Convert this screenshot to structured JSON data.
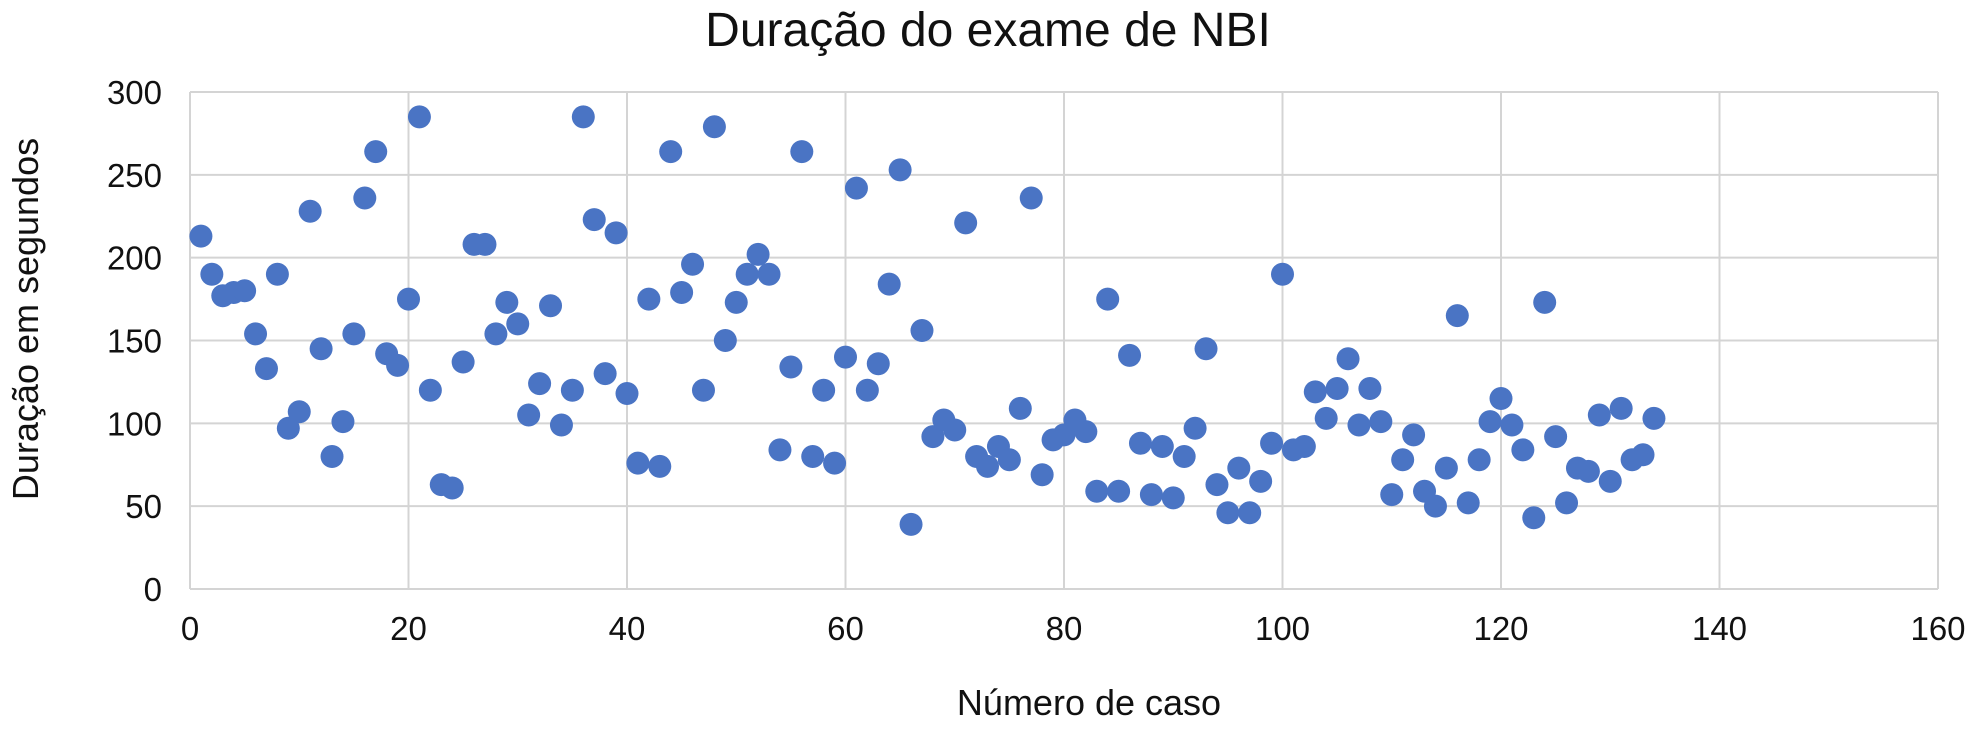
{
  "chart_data": {
    "type": "scatter",
    "title": "Duração do exame de NBI",
    "xlabel": "Número de caso",
    "ylabel": "Duração em segundos",
    "xlim": [
      0,
      160
    ],
    "ylim": [
      0,
      300
    ],
    "xticks": [
      0,
      20,
      40,
      60,
      80,
      100,
      120,
      140,
      160
    ],
    "yticks": [
      0,
      50,
      100,
      150,
      200,
      250,
      300
    ],
    "grid": true,
    "legend": "none",
    "marker_color": "#4a74c4",
    "points": [
      [
        1,
        213
      ],
      [
        2,
        190
      ],
      [
        3,
        177
      ],
      [
        4,
        179
      ],
      [
        5,
        180
      ],
      [
        6,
        154
      ],
      [
        7,
        133
      ],
      [
        8,
        190
      ],
      [
        9,
        97
      ],
      [
        10,
        107
      ],
      [
        11,
        228
      ],
      [
        12,
        145
      ],
      [
        13,
        80
      ],
      [
        14,
        101
      ],
      [
        15,
        154
      ],
      [
        16,
        236
      ],
      [
        17,
        264
      ],
      [
        18,
        142
      ],
      [
        19,
        135
      ],
      [
        20,
        175
      ],
      [
        21,
        285
      ],
      [
        22,
        120
      ],
      [
        23,
        63
      ],
      [
        24,
        61
      ],
      [
        25,
        137
      ],
      [
        26,
        208
      ],
      [
        27,
        208
      ],
      [
        28,
        154
      ],
      [
        29,
        173
      ],
      [
        30,
        160
      ],
      [
        31,
        105
      ],
      [
        32,
        124
      ],
      [
        33,
        171
      ],
      [
        34,
        99
      ],
      [
        35,
        120
      ],
      [
        36,
        285
      ],
      [
        37,
        223
      ],
      [
        38,
        130
      ],
      [
        39,
        215
      ],
      [
        40,
        118
      ],
      [
        41,
        76
      ],
      [
        42,
        175
      ],
      [
        43,
        74
      ],
      [
        44,
        264
      ],
      [
        45,
        179
      ],
      [
        46,
        196
      ],
      [
        47,
        120
      ],
      [
        48,
        279
      ],
      [
        49,
        150
      ],
      [
        50,
        173
      ],
      [
        51,
        190
      ],
      [
        52,
        202
      ],
      [
        53,
        190
      ],
      [
        54,
        84
      ],
      [
        55,
        134
      ],
      [
        56,
        264
      ],
      [
        57,
        80
      ],
      [
        58,
        120
      ],
      [
        59,
        76
      ],
      [
        60,
        140
      ],
      [
        61,
        242
      ],
      [
        62,
        120
      ],
      [
        63,
        136
      ],
      [
        64,
        184
      ],
      [
        65,
        253
      ],
      [
        66,
        39
      ],
      [
        67,
        156
      ],
      [
        68,
        92
      ],
      [
        69,
        102
      ],
      [
        70,
        96
      ],
      [
        71,
        221
      ],
      [
        72,
        80
      ],
      [
        73,
        74
      ],
      [
        74,
        86
      ],
      [
        75,
        78
      ],
      [
        76,
        109
      ],
      [
        77,
        236
      ],
      [
        78,
        69
      ],
      [
        79,
        90
      ],
      [
        80,
        93
      ],
      [
        81,
        102
      ],
      [
        82,
        95
      ],
      [
        83,
        59
      ],
      [
        84,
        175
      ],
      [
        85,
        59
      ],
      [
        86,
        141
      ],
      [
        87,
        88
      ],
      [
        88,
        57
      ],
      [
        89,
        86
      ],
      [
        90,
        55
      ],
      [
        91,
        80
      ],
      [
        92,
        97
      ],
      [
        93,
        145
      ],
      [
        94,
        63
      ],
      [
        95,
        46
      ],
      [
        96,
        73
      ],
      [
        97,
        46
      ],
      [
        98,
        65
      ],
      [
        99,
        88
      ],
      [
        100,
        190
      ],
      [
        101,
        84
      ],
      [
        102,
        86
      ],
      [
        103,
        119
      ],
      [
        104,
        103
      ],
      [
        105,
        121
      ],
      [
        106,
        139
      ],
      [
        107,
        99
      ],
      [
        108,
        121
      ],
      [
        109,
        101
      ],
      [
        110,
        57
      ],
      [
        111,
        78
      ],
      [
        112,
        93
      ],
      [
        113,
        59
      ],
      [
        114,
        50
      ],
      [
        115,
        73
      ],
      [
        116,
        165
      ],
      [
        117,
        52
      ],
      [
        118,
        78
      ],
      [
        119,
        101
      ],
      [
        120,
        115
      ],
      [
        121,
        99
      ],
      [
        122,
        84
      ],
      [
        123,
        43
      ],
      [
        124,
        173
      ],
      [
        125,
        92
      ],
      [
        126,
        52
      ],
      [
        127,
        73
      ],
      [
        128,
        71
      ],
      [
        129,
        105
      ],
      [
        130,
        65
      ],
      [
        131,
        109
      ],
      [
        132,
        78
      ],
      [
        133,
        81
      ],
      [
        134,
        103
      ]
    ]
  }
}
